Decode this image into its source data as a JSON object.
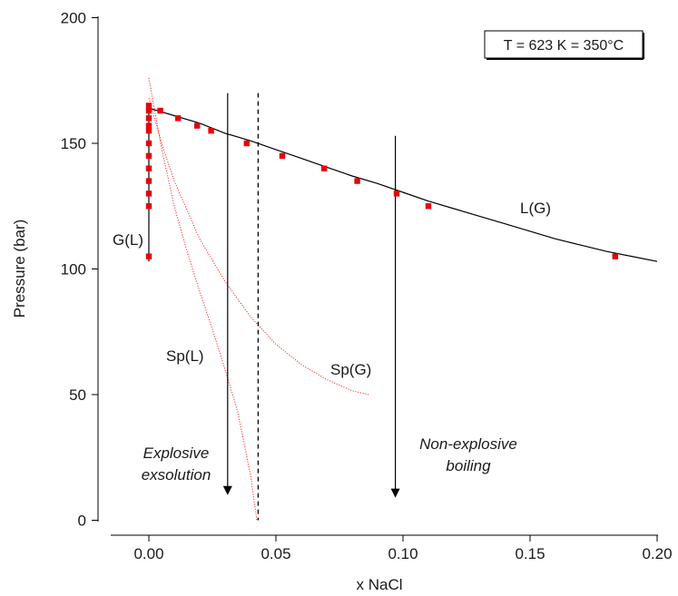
{
  "chart_data": {
    "type": "scatter",
    "xlabel": "x NaCl",
    "ylabel": "Pressure (bar)",
    "xlim": [
      -0.025,
      0.2
    ],
    "ylim": [
      0,
      200
    ],
    "xticks": [
      0.0,
      0.05,
      0.1,
      0.15,
      0.2
    ],
    "xtick_labels": [
      "0.00",
      "0.05",
      "0.10",
      "0.15",
      "0.20"
    ],
    "yticks": [
      0,
      50,
      100,
      150,
      200
    ],
    "ytick_labels": [
      "0",
      "50",
      "100",
      "150",
      "200"
    ],
    "grid": false,
    "legend_box": "T = 623 K = 350°C",
    "colors": {
      "points": "#e8000b",
      "spinodal": "#ff2a2a",
      "curve": "#000000"
    },
    "series": [
      {
        "style": "markers",
        "color": "#e8000b",
        "points": [
          [
            0.0,
            105
          ],
          [
            0.0,
            125
          ],
          [
            0.0,
            130
          ],
          [
            0.0,
            135
          ],
          [
            0.0,
            140
          ],
          [
            0.0,
            145
          ],
          [
            0.0,
            150
          ],
          [
            0.0,
            155
          ],
          [
            0.0,
            157
          ],
          [
            0.0,
            160
          ],
          [
            0.0,
            163
          ],
          [
            0.0,
            165
          ],
          [
            0.0045,
            163
          ],
          [
            0.0115,
            160
          ],
          [
            0.019,
            157
          ],
          [
            0.0245,
            155
          ],
          [
            0.0385,
            150
          ],
          [
            0.0525,
            145
          ],
          [
            0.069,
            140
          ],
          [
            0.082,
            135
          ],
          [
            0.0975,
            130
          ],
          [
            0.11,
            125
          ],
          [
            0.1835,
            105
          ]
        ]
      },
      {
        "label": "L(G)",
        "style": "solid",
        "color": "#000000",
        "points": [
          [
            0.0,
            164
          ],
          [
            0.01,
            161
          ],
          [
            0.02,
            158
          ],
          [
            0.03,
            154
          ],
          [
            0.04,
            151
          ],
          [
            0.05,
            147.5
          ],
          [
            0.06,
            144
          ],
          [
            0.07,
            140.5
          ],
          [
            0.08,
            137
          ],
          [
            0.09,
            134
          ],
          [
            0.1,
            130.5
          ],
          [
            0.11,
            127
          ],
          [
            0.12,
            124
          ],
          [
            0.13,
            121
          ],
          [
            0.14,
            118
          ],
          [
            0.15,
            115
          ],
          [
            0.16,
            112
          ],
          [
            0.17,
            109.5
          ],
          [
            0.18,
            107
          ],
          [
            0.19,
            105
          ],
          [
            0.2,
            103
          ]
        ]
      },
      {
        "label": "G(L)",
        "style": "solid",
        "color": "#000000",
        "points": [
          [
            0.0,
            103
          ],
          [
            0.0,
            166
          ]
        ]
      },
      {
        "label": "Sp(L)",
        "style": "dotted",
        "color": "#ff2a2a",
        "points": [
          [
            0.0,
            176
          ],
          [
            0.005,
            148
          ],
          [
            0.01,
            125
          ],
          [
            0.015,
            107
          ],
          [
            0.02,
            91
          ],
          [
            0.025,
            76
          ],
          [
            0.03,
            60
          ],
          [
            0.035,
            43
          ],
          [
            0.04,
            18
          ],
          [
            0.0425,
            0
          ]
        ]
      },
      {
        "label": "Sp(G)",
        "style": "dotted",
        "color": "#ff2a2a",
        "points": [
          [
            0.0,
            168
          ],
          [
            0.005,
            150
          ],
          [
            0.01,
            135
          ],
          [
            0.02,
            112
          ],
          [
            0.03,
            95
          ],
          [
            0.04,
            81
          ],
          [
            0.05,
            70
          ],
          [
            0.06,
            62
          ],
          [
            0.07,
            56
          ],
          [
            0.08,
            51.5
          ],
          [
            0.0865,
            50
          ]
        ]
      }
    ],
    "reference_lines": [
      {
        "x": 0.031,
        "from": 170,
        "to": 10,
        "style": "arrow"
      },
      {
        "x": 0.043,
        "from": 170,
        "to": 0,
        "style": "dashed"
      },
      {
        "x": 0.097,
        "from": 153,
        "to": 9,
        "style": "arrow"
      }
    ],
    "annotations": [
      {
        "text": "Explosive",
        "x": 0.02,
        "y": 25
      },
      {
        "text": "exsolution",
        "x": 0.02,
        "y": 17
      },
      {
        "text": "Non-explosive",
        "x": 0.099,
        "y": 33
      },
      {
        "text": "boiling",
        "x": 0.099,
        "y": 25
      }
    ]
  }
}
